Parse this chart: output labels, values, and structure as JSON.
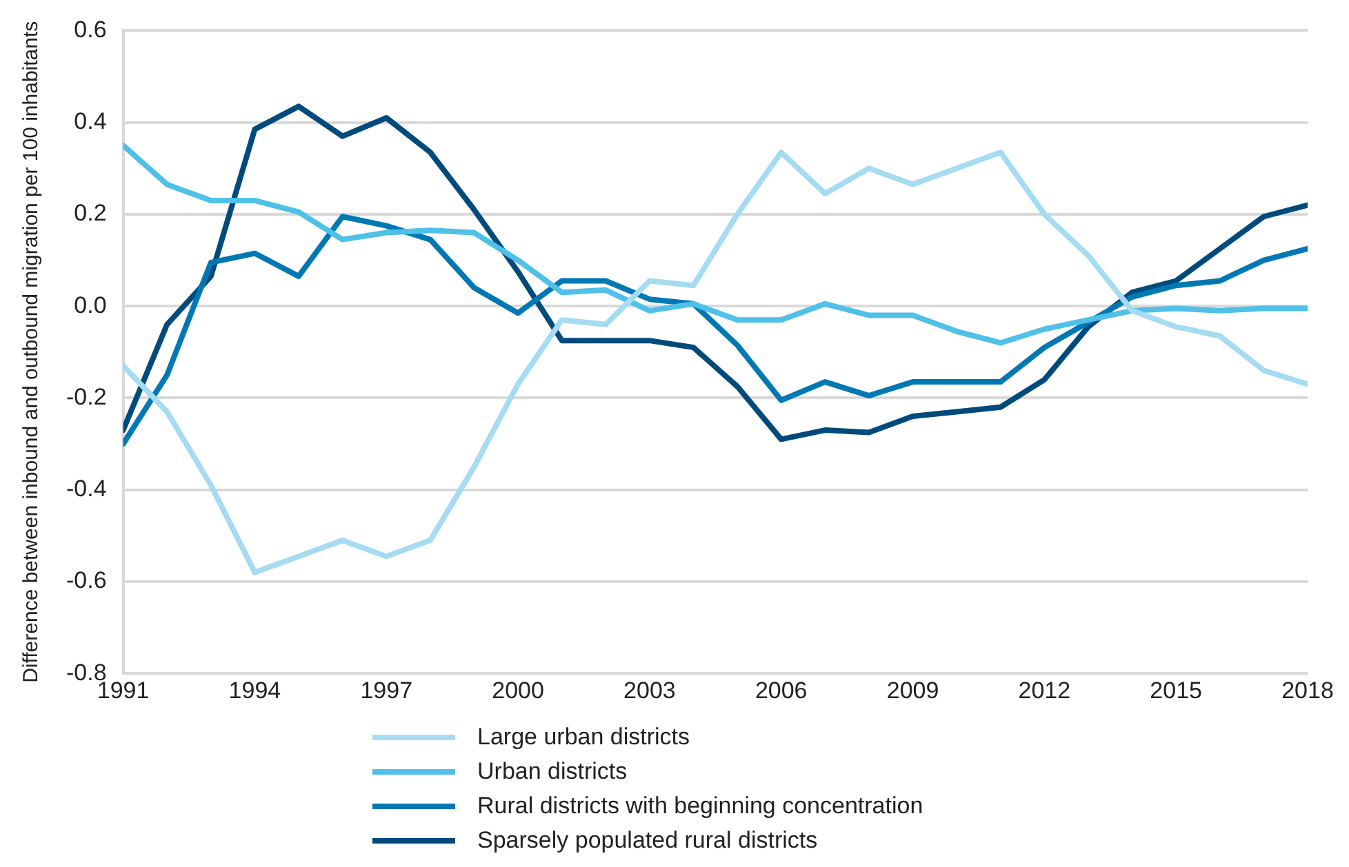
{
  "chart_data": {
    "type": "line",
    "ylabel": "Difference between inbound and outbound migration per 100 inhabitants",
    "x": [
      1991,
      1992,
      1993,
      1994,
      1995,
      1996,
      1997,
      1998,
      1999,
      2000,
      2001,
      2002,
      2003,
      2004,
      2005,
      2006,
      2007,
      2008,
      2009,
      2010,
      2011,
      2012,
      2013,
      2014,
      2015,
      2016,
      2017,
      2018
    ],
    "xlim": [
      1991,
      2018
    ],
    "xticks": [
      1991,
      1994,
      1997,
      2000,
      2003,
      2006,
      2009,
      2012,
      2015,
      2018
    ],
    "ylim": [
      -0.8,
      0.6
    ],
    "yticks": [
      {
        "value": -0.8,
        "label": "-0.8"
      },
      {
        "value": -0.6,
        "label": "-0.6"
      },
      {
        "value": -0.4,
        "label": "-0.4"
      },
      {
        "value": -0.2,
        "label": "-0.2"
      },
      {
        "value": 0,
        "label": "0.0"
      },
      {
        "value": 0.2,
        "label": "0.2"
      },
      {
        "value": 0.4,
        "label": "0.4"
      },
      {
        "value": 0.6,
        "label": "0.6"
      }
    ],
    "grid": "y",
    "legend": "bottom",
    "marker": "none",
    "line_style": "solid",
    "series": [
      {
        "name": "Large urban districts",
        "color": "#a6dcf2",
        "values": [
          -0.13,
          -0.23,
          -0.39,
          -0.58,
          -0.545,
          -0.51,
          -0.545,
          -0.51,
          -0.35,
          -0.17,
          -0.03,
          -0.04,
          0.055,
          0.045,
          0.2,
          0.335,
          0.245,
          0.3,
          0.265,
          0.3,
          0.335,
          0.2,
          0.11,
          -0.01,
          -0.045,
          -0.065,
          -0.14,
          -0.17
        ]
      },
      {
        "name": "Urban districts",
        "color": "#4fc1e8",
        "values": [
          0.35,
          0.265,
          0.23,
          0.23,
          0.205,
          0.145,
          0.16,
          0.165,
          0.16,
          0.1,
          0.03,
          0.035,
          -0.01,
          0.005,
          -0.03,
          -0.03,
          0.005,
          -0.02,
          -0.02,
          -0.055,
          -0.08,
          -0.05,
          -0.03,
          -0.01,
          -0.005,
          -0.01,
          -0.005,
          -0.005
        ]
      },
      {
        "name": "Rural districts with beginning concentration",
        "color": "#0078b4",
        "values": [
          -0.3,
          -0.15,
          0.095,
          0.115,
          0.065,
          0.195,
          0.175,
          0.145,
          0.04,
          -0.015,
          0.055,
          0.055,
          0.015,
          0.005,
          -0.085,
          -0.205,
          -0.165,
          -0.195,
          -0.165,
          -0.165,
          -0.165,
          -0.09,
          -0.035,
          0.02,
          0.045,
          0.055,
          0.1,
          0.125
        ]
      },
      {
        "name": "Sparsely populated rural districts",
        "color": "#004a7c",
        "values": [
          -0.27,
          -0.04,
          0.065,
          0.385,
          0.435,
          0.37,
          0.41,
          0.335,
          0.21,
          0.075,
          -0.075,
          -0.075,
          -0.075,
          -0.09,
          -0.175,
          -0.29,
          -0.27,
          -0.275,
          -0.24,
          -0.23,
          -0.22,
          -0.16,
          -0.045,
          0.03,
          0.055,
          0.125,
          0.195,
          0.22
        ]
      }
    ]
  }
}
